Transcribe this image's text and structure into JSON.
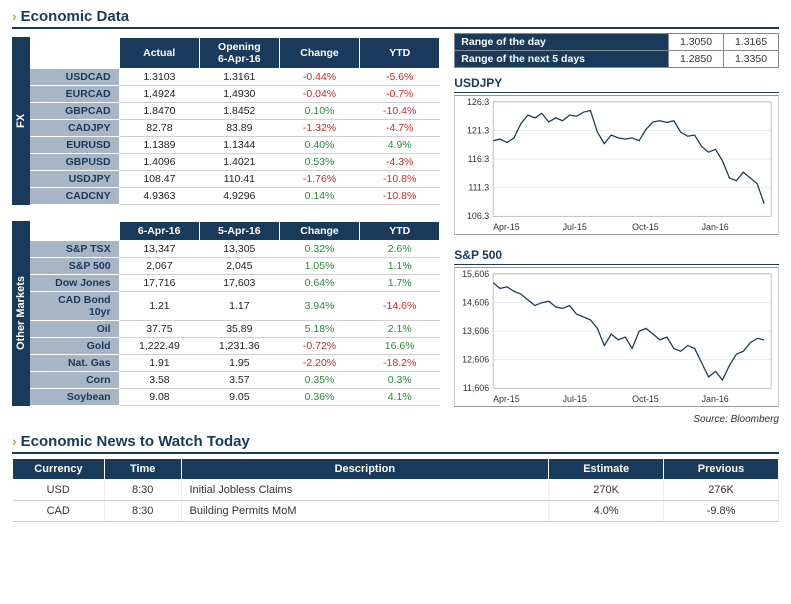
{
  "titles": {
    "economic_data": "Economic Data",
    "economic_news": "Economic News to Watch Today"
  },
  "fx_table": {
    "tab": "FX",
    "cols": [
      "Actual",
      "Opening\n6-Apr-16",
      "Change",
      "YTD"
    ],
    "rows": [
      {
        "label": "USDCAD",
        "actual": "1.3103",
        "open": "1.3161",
        "change": "-0.44%",
        "ytd": "-5.6%",
        "chg_sign": -1,
        "ytd_sign": -1
      },
      {
        "label": "EURCAD",
        "actual": "1.4924",
        "open": "1.4930",
        "change": "-0.04%",
        "ytd": "-0.7%",
        "chg_sign": -1,
        "ytd_sign": -1
      },
      {
        "label": "GBPCAD",
        "actual": "1.8470",
        "open": "1.8452",
        "change": "0.10%",
        "ytd": "-10.4%",
        "chg_sign": 1,
        "ytd_sign": -1
      },
      {
        "label": "CADJPY",
        "actual": "82.78",
        "open": "83.89",
        "change": "-1.32%",
        "ytd": "-4.7%",
        "chg_sign": -1,
        "ytd_sign": -1
      },
      {
        "label": "EURUSD",
        "actual": "1.1389",
        "open": "1.1344",
        "change": "0.40%",
        "ytd": "4.9%",
        "chg_sign": 1,
        "ytd_sign": 1
      },
      {
        "label": "GBPUSD",
        "actual": "1.4096",
        "open": "1.4021",
        "change": "0.53%",
        "ytd": "-4.3%",
        "chg_sign": 1,
        "ytd_sign": -1
      },
      {
        "label": "USDJPY",
        "actual": "108.47",
        "open": "110.41",
        "change": "-1.76%",
        "ytd": "-10.8%",
        "chg_sign": -1,
        "ytd_sign": -1
      },
      {
        "label": "CADCNY",
        "actual": "4.9363",
        "open": "4.9296",
        "change": "0.14%",
        "ytd": "-10.8%",
        "chg_sign": 1,
        "ytd_sign": -1
      }
    ]
  },
  "other_table": {
    "tab": "Other Markets",
    "cols": [
      "6-Apr-16",
      "5-Apr-16",
      "Change",
      "YTD"
    ],
    "rows": [
      {
        "label": "S&P TSX",
        "v1": "13,347",
        "v2": "13,305",
        "change": "0.32%",
        "ytd": "2.6%",
        "chg_sign": 1,
        "ytd_sign": 1
      },
      {
        "label": "S&P 500",
        "v1": "2,067",
        "v2": "2,045",
        "change": "1.05%",
        "ytd": "1.1%",
        "chg_sign": 1,
        "ytd_sign": 1
      },
      {
        "label": "Dow Jones",
        "v1": "17,716",
        "v2": "17,603",
        "change": "0.64%",
        "ytd": "1.7%",
        "chg_sign": 1,
        "ytd_sign": 1
      },
      {
        "label": "CAD Bond 10yr",
        "v1": "1.21",
        "v2": "1.17",
        "change": "3.94%",
        "ytd": "-14.6%",
        "chg_sign": 1,
        "ytd_sign": -1
      },
      {
        "label": "Oil",
        "v1": "37.75",
        "v2": "35.89",
        "change": "5.18%",
        "ytd": "2.1%",
        "chg_sign": 1,
        "ytd_sign": 1
      },
      {
        "label": "Gold",
        "v1": "1,222.49",
        "v2": "1,231.36",
        "change": "-0.72%",
        "ytd": "16.6%",
        "chg_sign": -1,
        "ytd_sign": 1
      },
      {
        "label": "Nat. Gas",
        "v1": "1.91",
        "v2": "1.95",
        "change": "-2.20%",
        "ytd": "-18.2%",
        "chg_sign": -1,
        "ytd_sign": -1
      },
      {
        "label": "Corn",
        "v1": "3.58",
        "v2": "3.57",
        "change": "0.35%",
        "ytd": "0.3%",
        "chg_sign": 1,
        "ytd_sign": 1
      },
      {
        "label": "Soybean",
        "v1": "9.08",
        "v2": "9.05",
        "change": "0.36%",
        "ytd": "4.1%",
        "chg_sign": 1,
        "ytd_sign": 1
      }
    ]
  },
  "ranges": {
    "rows": [
      {
        "label": "Range of the day",
        "lo": "1.3050",
        "hi": "1.3165"
      },
      {
        "label": "Range of the next 5 days",
        "lo": "1.2850",
        "hi": "1.3350"
      }
    ]
  },
  "chart1": {
    "title": "USDJPY",
    "type": "line",
    "yticks": [
      106.3,
      111.3,
      116.3,
      121.3,
      126.3
    ],
    "ylim": [
      106.3,
      126.3
    ],
    "xlim": [
      0,
      12
    ],
    "xticks": [
      {
        "pos": 0,
        "label": "Apr-15"
      },
      {
        "pos": 3,
        "label": "Jul-15"
      },
      {
        "pos": 6,
        "label": "Oct-15"
      },
      {
        "pos": 9,
        "label": "Jan-16"
      }
    ],
    "line_color": "#1a3a5c",
    "grid_color": "#d8d8d8",
    "background_color": "#ffffff",
    "series": [
      [
        0,
        119.5
      ],
      [
        0.3,
        119.8
      ],
      [
        0.6,
        119.2
      ],
      [
        0.9,
        120.0
      ],
      [
        1.2,
        122.5
      ],
      [
        1.5,
        124.0
      ],
      [
        1.8,
        123.5
      ],
      [
        2.1,
        124.3
      ],
      [
        2.4,
        122.8
      ],
      [
        2.7,
        123.5
      ],
      [
        3.0,
        123.0
      ],
      [
        3.3,
        124.0
      ],
      [
        3.6,
        123.8
      ],
      [
        3.9,
        124.5
      ],
      [
        4.2,
        124.8
      ],
      [
        4.5,
        121.0
      ],
      [
        4.8,
        119.0
      ],
      [
        5.1,
        120.5
      ],
      [
        5.4,
        120.0
      ],
      [
        5.7,
        119.8
      ],
      [
        6.0,
        120.0
      ],
      [
        6.3,
        119.5
      ],
      [
        6.6,
        121.5
      ],
      [
        6.9,
        122.8
      ],
      [
        7.2,
        123.0
      ],
      [
        7.5,
        122.7
      ],
      [
        7.8,
        123.0
      ],
      [
        8.1,
        121.0
      ],
      [
        8.4,
        120.3
      ],
      [
        8.7,
        120.5
      ],
      [
        9.0,
        118.5
      ],
      [
        9.3,
        117.5
      ],
      [
        9.6,
        118.0
      ],
      [
        9.9,
        116.0
      ],
      [
        10.2,
        113.0
      ],
      [
        10.5,
        112.5
      ],
      [
        10.8,
        114.0
      ],
      [
        11.1,
        113.0
      ],
      [
        11.4,
        112.0
      ],
      [
        11.7,
        108.5
      ]
    ]
  },
  "chart2": {
    "title": "S&P 500",
    "type": "line",
    "yticks": [
      11606,
      12606,
      13606,
      14606,
      15606
    ],
    "ylim": [
      11606,
      15606
    ],
    "xlim": [
      0,
      12
    ],
    "xticks": [
      {
        "pos": 0,
        "label": "Apr-15"
      },
      {
        "pos": 3,
        "label": "Jul-15"
      },
      {
        "pos": 6,
        "label": "Oct-15"
      },
      {
        "pos": 9,
        "label": "Jan-16"
      }
    ],
    "line_color": "#1a3a5c",
    "grid_color": "#d8d8d8",
    "background_color": "#ffffff",
    "series": [
      [
        0,
        15300
      ],
      [
        0.3,
        15100
      ],
      [
        0.6,
        15150
      ],
      [
        0.9,
        15000
      ],
      [
        1.2,
        14900
      ],
      [
        1.5,
        14700
      ],
      [
        1.8,
        14500
      ],
      [
        2.1,
        14600
      ],
      [
        2.4,
        14650
      ],
      [
        2.7,
        14450
      ],
      [
        3.0,
        14400
      ],
      [
        3.3,
        14500
      ],
      [
        3.6,
        14200
      ],
      [
        3.9,
        14100
      ],
      [
        4.2,
        14000
      ],
      [
        4.5,
        13700
      ],
      [
        4.8,
        13100
      ],
      [
        5.1,
        13500
      ],
      [
        5.4,
        13300
      ],
      [
        5.7,
        13400
      ],
      [
        6.0,
        13000
      ],
      [
        6.3,
        13600
      ],
      [
        6.6,
        13700
      ],
      [
        6.9,
        13500
      ],
      [
        7.2,
        13300
      ],
      [
        7.5,
        13400
      ],
      [
        7.8,
        13000
      ],
      [
        8.1,
        12900
      ],
      [
        8.4,
        13100
      ],
      [
        8.7,
        13000
      ],
      [
        9.0,
        12500
      ],
      [
        9.3,
        12000
      ],
      [
        9.6,
        12200
      ],
      [
        9.9,
        11900
      ],
      [
        10.2,
        12400
      ],
      [
        10.5,
        12800
      ],
      [
        10.8,
        12900
      ],
      [
        11.1,
        13200
      ],
      [
        11.4,
        13350
      ],
      [
        11.7,
        13300
      ]
    ]
  },
  "source": "Source: Bloomberg",
  "news": {
    "cols": [
      "Currency",
      "Time",
      "Description",
      "Estimate",
      "Previous"
    ],
    "rows": [
      {
        "currency": "USD",
        "time": "8:30",
        "desc": "Initial Jobless Claims",
        "est": "270K",
        "prev": "276K"
      },
      {
        "currency": "CAD",
        "time": "8:30",
        "desc": "Building Permits MoM",
        "est": "4.0%",
        "prev": "-9.8%"
      }
    ]
  },
  "colors": {
    "navy": "#1a3a5c",
    "gold": "#c9a14a",
    "rowlabel_bg": "#a7b5c4",
    "pos": "#2b8a3e",
    "neg": "#c92a2a"
  }
}
